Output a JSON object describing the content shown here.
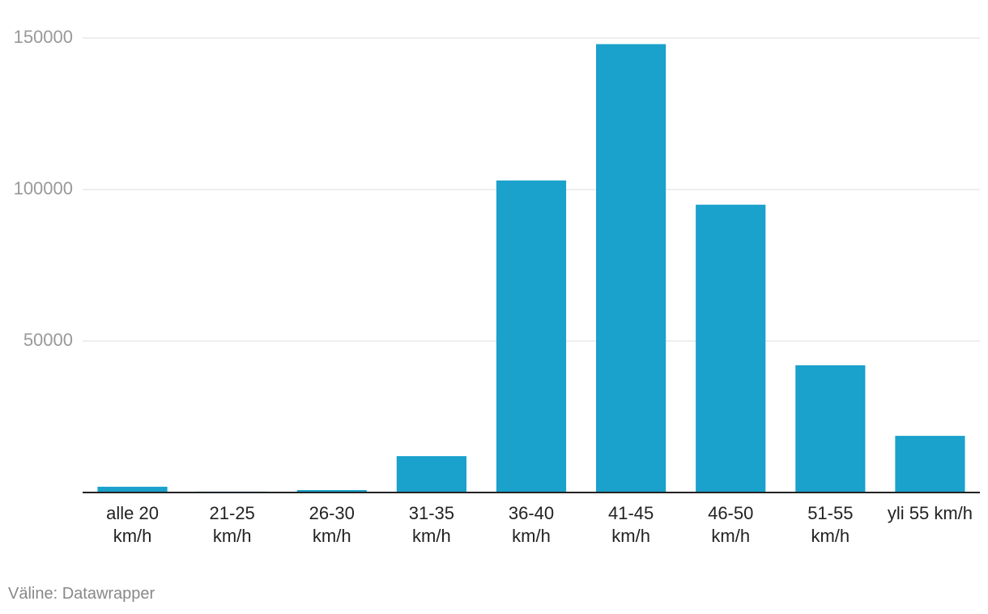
{
  "chart_data": {
    "type": "bar",
    "categories": [
      "alle 20 km/h",
      "21-25 km/h",
      "26-30 km/h",
      "31-35 km/h",
      "36-40 km/h",
      "41-45 km/h",
      "46-50 km/h",
      "51-55 km/h",
      "yli 55 km/h"
    ],
    "values": [
      1900,
      300,
      800,
      12000,
      103000,
      148000,
      95000,
      42000,
      18700
    ],
    "color": "#1aa1cc",
    "ylim": [
      0,
      150000
    ],
    "yticks": [
      50000,
      100000,
      150000
    ],
    "grid": true,
    "source": "Väline: Datawrapper"
  }
}
